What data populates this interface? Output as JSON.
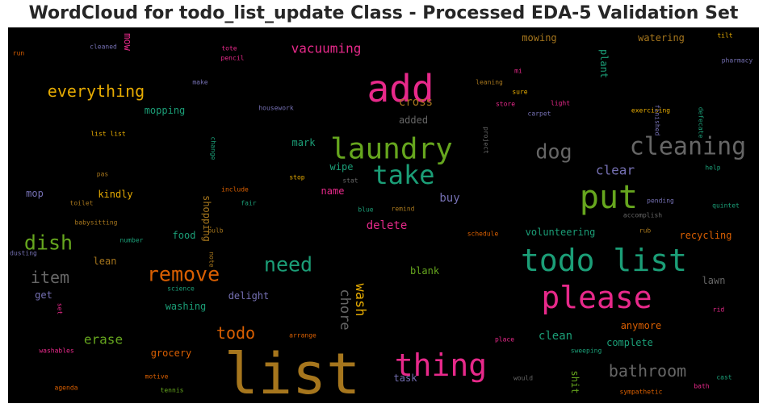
{
  "title": "WordCloud for todo_list_update Class - Processed EDA-5 Validation Set",
  "chart_data": {
    "type": "wordcloud",
    "title": "WordCloud for todo_list_update Class - Processed EDA-5 Validation Set",
    "background": "#000000",
    "palette": {
      "pink": "#e7298a",
      "green": "#66a61e",
      "teal": "#1b9e77",
      "gold": "#e6ab02",
      "orange": "#d95f02",
      "purple": "#7570b3",
      "brown": "#a6761d",
      "gray": "#666666"
    },
    "words": [
      {
        "text": "list",
        "weight": 1.0,
        "color": "brown"
      },
      {
        "text": "add",
        "weight": 0.72,
        "color": "pink"
      },
      {
        "text": "todo list",
        "weight": 0.62,
        "color": "teal"
      },
      {
        "text": "put",
        "weight": 0.62,
        "color": "green"
      },
      {
        "text": "please",
        "weight": 0.6,
        "color": "pink"
      },
      {
        "text": "thing",
        "weight": 0.6,
        "color": "pink"
      },
      {
        "text": "laundry",
        "weight": 0.56,
        "color": "green"
      },
      {
        "text": "cleaning",
        "weight": 0.5,
        "color": "gray"
      },
      {
        "text": "take",
        "weight": 0.48,
        "color": "teal"
      },
      {
        "text": "remove",
        "weight": 0.38,
        "color": "orange"
      },
      {
        "text": "need",
        "weight": 0.38,
        "color": "teal"
      },
      {
        "text": "dog",
        "weight": 0.36,
        "color": "gray"
      },
      {
        "text": "dish",
        "weight": 0.36,
        "color": "green"
      },
      {
        "text": "bathroom",
        "weight": 0.32,
        "color": "gray"
      },
      {
        "text": "everything",
        "weight": 0.32,
        "color": "gold"
      },
      {
        "text": "todo",
        "weight": 0.3,
        "color": "orange"
      },
      {
        "text": "item",
        "weight": 0.3,
        "color": "gray"
      },
      {
        "text": "chore",
        "weight": 0.26,
        "color": "gray"
      },
      {
        "text": "wash",
        "weight": 0.26,
        "color": "gold"
      },
      {
        "text": "erase",
        "weight": 0.24,
        "color": "green"
      },
      {
        "text": "clear",
        "weight": 0.24,
        "color": "purple"
      },
      {
        "text": "vacuuming",
        "weight": 0.22,
        "color": "pink"
      },
      {
        "text": "cross",
        "weight": 0.2,
        "color": "brown"
      },
      {
        "text": "delete",
        "weight": 0.2,
        "color": "pink"
      },
      {
        "text": "clean",
        "weight": 0.2,
        "color": "teal"
      },
      {
        "text": "anymore",
        "weight": 0.18,
        "color": "orange"
      },
      {
        "text": "buy",
        "weight": 0.18,
        "color": "purple"
      },
      {
        "text": "mopping",
        "weight": 0.18,
        "color": "teal"
      },
      {
        "text": "food",
        "weight": 0.18,
        "color": "teal"
      },
      {
        "text": "washing",
        "weight": 0.18,
        "color": "teal"
      },
      {
        "text": "lawn",
        "weight": 0.18,
        "color": "gray"
      },
      {
        "text": "delight",
        "weight": 0.16,
        "color": "purple"
      },
      {
        "text": "complete",
        "weight": 0.16,
        "color": "teal"
      },
      {
        "text": "task",
        "weight": 0.16,
        "color": "purple"
      },
      {
        "text": "added",
        "weight": 0.16,
        "color": "gray"
      },
      {
        "text": "mark",
        "weight": 0.16,
        "color": "teal"
      },
      {
        "text": "wipe",
        "weight": 0.16,
        "color": "teal"
      },
      {
        "text": "name",
        "weight": 0.16,
        "color": "pink"
      },
      {
        "text": "shopping",
        "weight": 0.16,
        "color": "brown"
      },
      {
        "text": "kindly",
        "weight": 0.16,
        "color": "gold"
      },
      {
        "text": "mop",
        "weight": 0.16,
        "color": "purple"
      },
      {
        "text": "volunteering",
        "weight": 0.16,
        "color": "teal"
      },
      {
        "text": "recycling",
        "weight": 0.16,
        "color": "orange"
      },
      {
        "text": "watering",
        "weight": 0.16,
        "color": "brown"
      },
      {
        "text": "mowing",
        "weight": 0.16,
        "color": "brown"
      },
      {
        "text": "plant",
        "weight": 0.16,
        "color": "teal"
      },
      {
        "text": "grocery",
        "weight": 0.15,
        "color": "orange"
      },
      {
        "text": "blank",
        "weight": 0.15,
        "color": "green"
      },
      {
        "text": "lean",
        "weight": 0.15,
        "color": "brown"
      },
      {
        "text": "get",
        "weight": 0.15,
        "color": "purple"
      },
      {
        "text": "shit",
        "weight": 0.15,
        "color": "green"
      },
      {
        "text": "mow",
        "weight": 0.15,
        "color": "pink"
      },
      {
        "text": "exercising",
        "weight": 0.1,
        "color": "gold"
      },
      {
        "text": "housework",
        "weight": 0.09,
        "color": "purple"
      },
      {
        "text": "list list",
        "weight": 0.09,
        "color": "gold"
      },
      {
        "text": "cleaned",
        "weight": 0.09,
        "color": "purple"
      },
      {
        "text": "run",
        "weight": 0.08,
        "color": "orange"
      },
      {
        "text": "tote",
        "weight": 0.08,
        "color": "pink"
      },
      {
        "text": "pencil",
        "weight": 0.08,
        "color": "pink"
      },
      {
        "text": "make",
        "weight": 0.08,
        "color": "purple"
      },
      {
        "text": "pharmacy",
        "weight": 0.08,
        "color": "purple"
      },
      {
        "text": "tilt",
        "weight": 0.08,
        "color": "gold"
      },
      {
        "text": "mi",
        "weight": 0.08,
        "color": "pink"
      },
      {
        "text": "leaning",
        "weight": 0.08,
        "color": "brown"
      },
      {
        "text": "sure",
        "weight": 0.08,
        "color": "gold"
      },
      {
        "text": "store",
        "weight": 0.08,
        "color": "pink"
      },
      {
        "text": "light",
        "weight": 0.08,
        "color": "pink"
      },
      {
        "text": "carpet",
        "weight": 0.08,
        "color": "purple"
      },
      {
        "text": "finished",
        "weight": 0.08,
        "color": "purple"
      },
      {
        "text": "defecate",
        "weight": 0.08,
        "color": "teal"
      },
      {
        "text": "project",
        "weight": 0.08,
        "color": "gray"
      },
      {
        "text": "change",
        "weight": 0.08,
        "color": "teal"
      },
      {
        "text": "pas",
        "weight": 0.08,
        "color": "brown"
      },
      {
        "text": "stop",
        "weight": 0.08,
        "color": "gold"
      },
      {
        "text": "stat",
        "weight": 0.08,
        "color": "gray"
      },
      {
        "text": "include",
        "weight": 0.08,
        "color": "orange"
      },
      {
        "text": "toilet",
        "weight": 0.08,
        "color": "brown"
      },
      {
        "text": "fair",
        "weight": 0.08,
        "color": "teal"
      },
      {
        "text": "blue",
        "weight": 0.08,
        "color": "teal"
      },
      {
        "text": "remind",
        "weight": 0.08,
        "color": "brown"
      },
      {
        "text": "pending",
        "weight": 0.08,
        "color": "purple"
      },
      {
        "text": "help",
        "weight": 0.08,
        "color": "teal"
      },
      {
        "text": "quintet",
        "weight": 0.08,
        "color": "teal"
      },
      {
        "text": "accomplish",
        "weight": 0.08,
        "color": "gray"
      },
      {
        "text": "babysitting",
        "weight": 0.08,
        "color": "brown"
      },
      {
        "text": "bulb",
        "weight": 0.08,
        "color": "brown"
      },
      {
        "text": "rub",
        "weight": 0.08,
        "color": "brown"
      },
      {
        "text": "schedule",
        "weight": 0.08,
        "color": "orange"
      },
      {
        "text": "number",
        "weight": 0.08,
        "color": "teal"
      },
      {
        "text": "dusting",
        "weight": 0.08,
        "color": "purple"
      },
      {
        "text": "note",
        "weight": 0.08,
        "color": "brown"
      },
      {
        "text": "science",
        "weight": 0.08,
        "color": "teal"
      },
      {
        "text": "set",
        "weight": 0.08,
        "color": "pink"
      },
      {
        "text": "rid",
        "weight": 0.08,
        "color": "pink"
      },
      {
        "text": "arrange",
        "weight": 0.08,
        "color": "orange"
      },
      {
        "text": "place",
        "weight": 0.08,
        "color": "pink"
      },
      {
        "text": "sweeping",
        "weight": 0.08,
        "color": "teal"
      },
      {
        "text": "washables",
        "weight": 0.08,
        "color": "pink"
      },
      {
        "text": "motive",
        "weight": 0.08,
        "color": "orange"
      },
      {
        "text": "would",
        "weight": 0.08,
        "color": "gray"
      },
      {
        "text": "cast",
        "weight": 0.08,
        "color": "teal"
      },
      {
        "text": "agenda",
        "weight": 0.08,
        "color": "orange"
      },
      {
        "text": "tennis",
        "weight": 0.08,
        "color": "green"
      },
      {
        "text": "sympathetic",
        "weight": 0.08,
        "color": "orange"
      },
      {
        "text": "bath",
        "weight": 0.08,
        "color": "pink"
      }
    ]
  }
}
